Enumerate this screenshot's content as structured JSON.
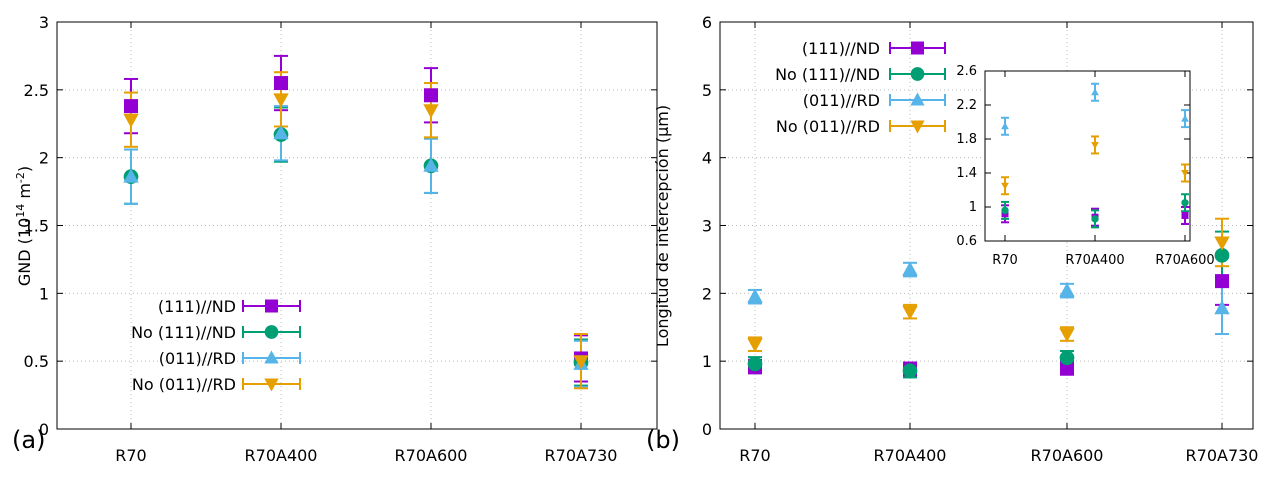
{
  "panels": [
    {
      "tag": "(a)",
      "ylabel": "GND (10",
      "ylabel_sup1": "14",
      "ylabel_mid": " m",
      "ylabel_sup2": "-2",
      "ylabel_end": ")"
    },
    {
      "tag": "(b)",
      "ylabel": "Longitud de intercepción (μm)"
    }
  ],
  "legend": [
    {
      "label": "(111)//ND"
    },
    {
      "label": "No (111)//ND"
    },
    {
      "label": "(011)//RD"
    },
    {
      "label": "No (011)//RD"
    }
  ],
  "colors": {
    "s111": "#9400d3",
    "no111": "#009e73",
    "s011": "#56b4e9",
    "no011": "#e69f00"
  },
  "chart_data": [
    {
      "type": "scatter",
      "title": "",
      "xlabel": "",
      "ylabel": "GND (10^14 m^-2)",
      "categories": [
        "R70",
        "R70A400",
        "R70A600",
        "R70A730"
      ],
      "ylim": [
        0,
        3
      ],
      "yticks": [
        "0",
        "0.5",
        "1",
        "1.5",
        "2",
        "2.5",
        "3"
      ],
      "grid": true,
      "legend_position": "bottom-left",
      "series": [
        {
          "name": "(111)//ND",
          "marker": "square",
          "color": "#9400d3",
          "values": [
            2.38,
            2.55,
            2.46,
            0.52
          ],
          "errors": [
            0.2,
            0.2,
            0.2,
            0.17
          ]
        },
        {
          "name": "No (111)//ND",
          "marker": "circle",
          "color": "#009e73",
          "values": [
            1.86,
            2.17,
            1.94,
            0.49
          ],
          "errors": [
            0.2,
            0.2,
            0.2,
            0.17
          ]
        },
        {
          "name": "(011)//RD",
          "marker": "triangle-up",
          "color": "#56b4e9",
          "values": [
            1.86,
            2.18,
            1.94,
            0.48
          ],
          "errors": [
            0.2,
            0.2,
            0.2,
            0.17
          ]
        },
        {
          "name": "No (011)//RD",
          "marker": "triangle-down",
          "color": "#e69f00",
          "values": [
            2.28,
            2.43,
            2.35,
            0.5
          ],
          "errors": [
            0.2,
            0.2,
            0.2,
            0.2
          ]
        }
      ]
    },
    {
      "type": "scatter",
      "title": "",
      "xlabel": "",
      "ylabel": "Longitud de intercepción (μm)",
      "categories": [
        "R70",
        "R70A400",
        "R70A600",
        "R70A730"
      ],
      "ylim": [
        0,
        6
      ],
      "yticks": [
        "0",
        "1",
        "2",
        "3",
        "4",
        "5",
        "6"
      ],
      "grid": true,
      "legend_position": "top-left",
      "series": [
        {
          "name": "(111)//ND",
          "marker": "square",
          "color": "#9400d3",
          "values": [
            0.92,
            0.88,
            0.9,
            2.18
          ],
          "errors": [
            0.1,
            0.1,
            0.1,
            0.35
          ]
        },
        {
          "name": "No (111)//ND",
          "marker": "circle",
          "color": "#009e73",
          "values": [
            0.96,
            0.86,
            1.05,
            2.56
          ],
          "errors": [
            0.1,
            0.1,
            0.1,
            0.35
          ]
        },
        {
          "name": "(011)//RD",
          "marker": "triangle-up",
          "color": "#56b4e9",
          "values": [
            1.95,
            2.35,
            2.04,
            1.78
          ],
          "errors": [
            0.1,
            0.1,
            0.1,
            0.38
          ]
        },
        {
          "name": "No (011)//RD",
          "marker": "triangle-down",
          "color": "#e69f00",
          "values": [
            1.25,
            1.73,
            1.4,
            2.75
          ],
          "errors": [
            0.1,
            0.1,
            0.1,
            0.35
          ]
        }
      ]
    },
    {
      "type": "scatter",
      "title": "",
      "xlabel": "",
      "ylabel": "",
      "categories": [
        "R70",
        "R70A400",
        "R70A600"
      ],
      "ylim": [
        0.6,
        2.6
      ],
      "yticks": [
        "0.6",
        "1",
        "1.4",
        "1.8",
        "2.2",
        "2.6"
      ],
      "grid": false,
      "series": [
        {
          "name": "(111)//ND",
          "marker": "square",
          "color": "#9400d3",
          "values": [
            0.92,
            0.88,
            0.9
          ],
          "errors": [
            0.1,
            0.1,
            0.1
          ]
        },
        {
          "name": "No (111)//ND",
          "marker": "circle",
          "color": "#009e73",
          "values": [
            0.96,
            0.86,
            1.05
          ],
          "errors": [
            0.1,
            0.1,
            0.1
          ]
        },
        {
          "name": "(011)//RD",
          "marker": "triangle-up",
          "color": "#56b4e9",
          "values": [
            1.95,
            2.35,
            2.04
          ],
          "errors": [
            0.1,
            0.1,
            0.1
          ]
        },
        {
          "name": "No (011)//RD",
          "marker": "triangle-down",
          "color": "#e69f00",
          "values": [
            1.25,
            1.73,
            1.4
          ],
          "errors": [
            0.1,
            0.1,
            0.1
          ]
        }
      ]
    }
  ]
}
